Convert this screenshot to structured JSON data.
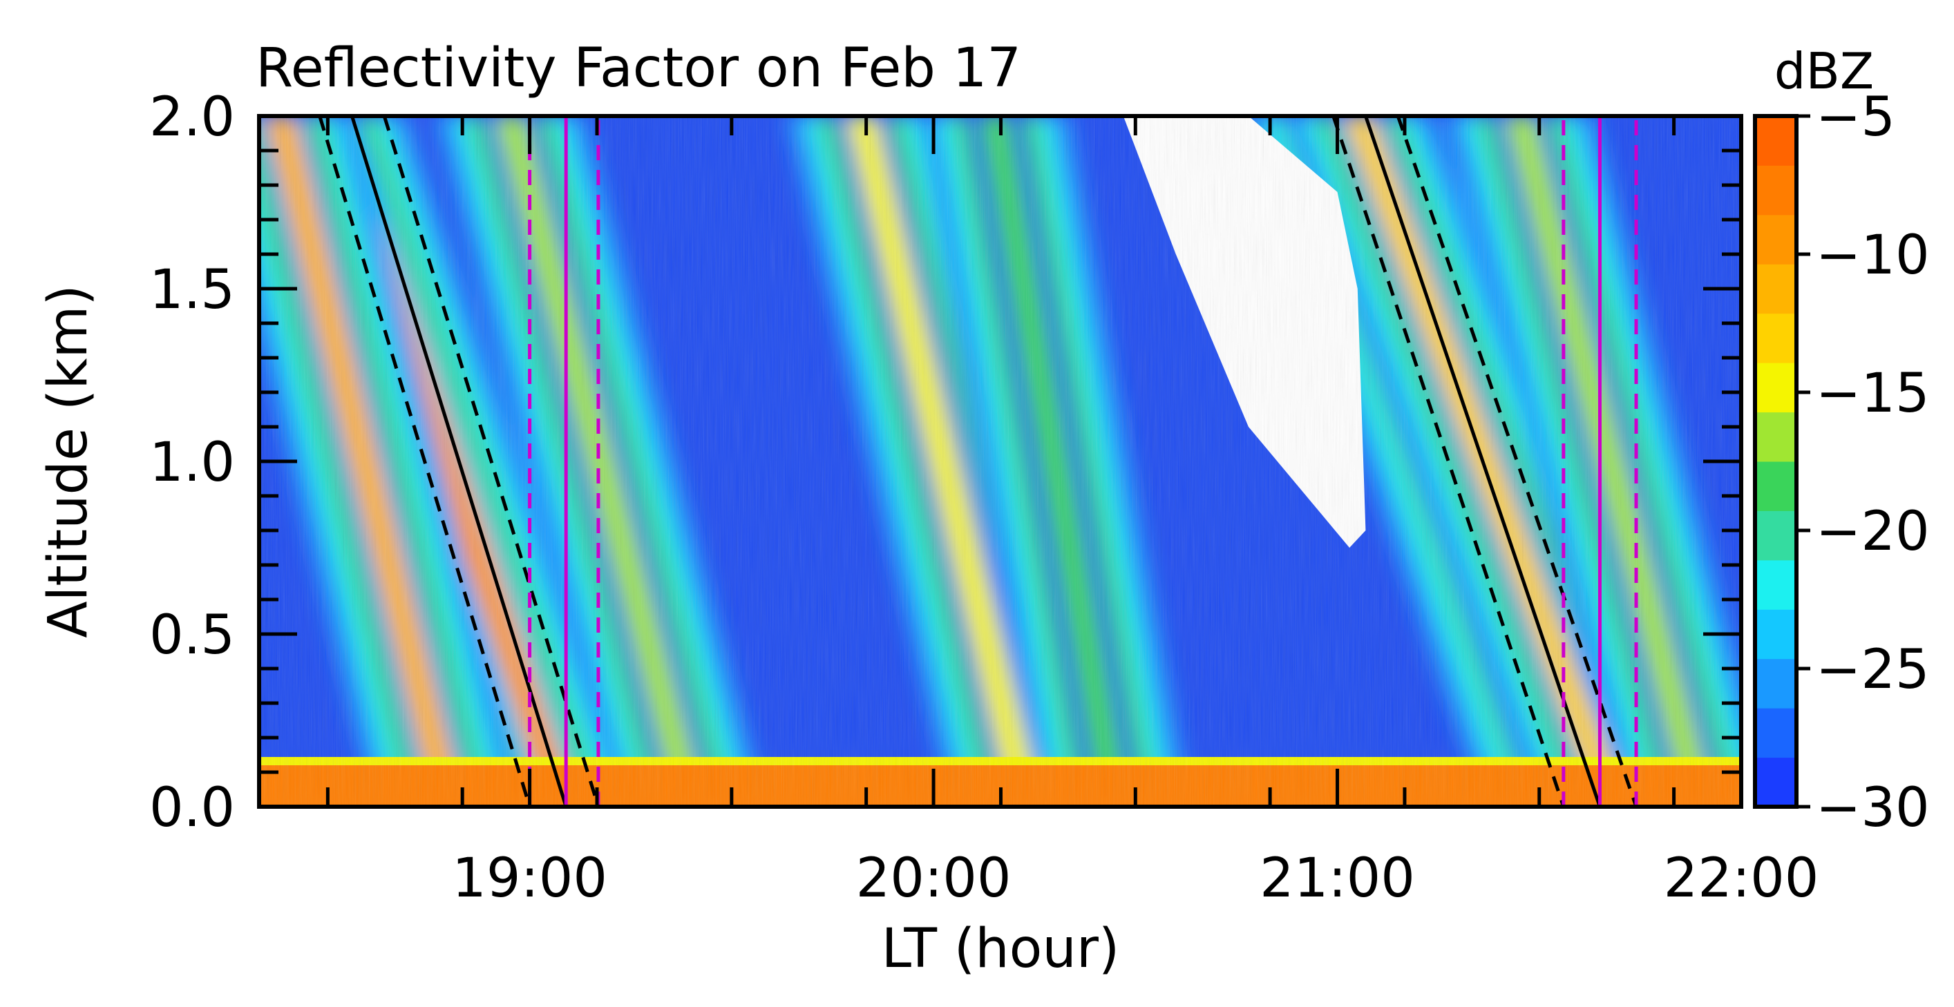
{
  "chart_data": {
    "type": "heatmap",
    "title": "Reflectivity Factor on Feb 17",
    "xlabel": "LT (hour)",
    "ylabel": "Altitude (km)",
    "colorbar_label": "dBZ",
    "xlim": [
      18.33,
      22.0
    ],
    "ylim": [
      0.0,
      2.0
    ],
    "x_ticks": [
      19,
      20,
      21,
      22
    ],
    "x_tick_labels": [
      "19:00",
      "20:00",
      "21:00",
      "22:00"
    ],
    "y_ticks": [
      0.0,
      0.5,
      1.0,
      1.5,
      2.0
    ],
    "y_tick_labels": [
      "0.0",
      "0.5",
      "1.0",
      "1.5",
      "2.0"
    ],
    "colorbar_range": [
      -30,
      -5
    ],
    "colorbar_ticks": [
      -30,
      -25,
      -20,
      -15,
      -10,
      -5
    ],
    "colorbar_tick_labels": [
      "−30",
      "−25",
      "−20",
      "−15",
      "−10",
      "−5"
    ],
    "colorbar_colors": [
      "#1a3dff",
      "#1a66ff",
      "#1a99ff",
      "#14c8ff",
      "#1cf0f0",
      "#34dca0",
      "#3ad45a",
      "#a0e632",
      "#f5f500",
      "#ffd200",
      "#ffb400",
      "#ff9600",
      "#ff7d00",
      "#ff6400"
    ],
    "no_data_color": "#ffffff",
    "streaks": [
      {
        "x_at_top": 18.51,
        "x_at_bottom": 19.08,
        "peak_dBZ": -10
      },
      {
        "x_at_top": 18.38,
        "x_at_bottom": 18.8,
        "peak_dBZ": -12
      },
      {
        "x_at_top": 18.95,
        "x_at_bottom": 19.4,
        "peak_dBZ": -17
      },
      {
        "x_at_top": 19.82,
        "x_at_bottom": 20.23,
        "peak_dBZ": -14
      },
      {
        "x_at_top": 20.15,
        "x_at_bottom": 20.45,
        "peak_dBZ": -18
      },
      {
        "x_at_top": 20.95,
        "x_at_bottom": 21.55,
        "peak_dBZ": -20
      },
      {
        "x_at_top": 21.05,
        "x_at_bottom": 21.68,
        "peak_dBZ": -13
      },
      {
        "x_at_top": 21.45,
        "x_at_bottom": 21.9,
        "peak_dBZ": -17
      }
    ],
    "surface_layer": {
      "top_km": 0.12,
      "peak_dBZ": -8
    },
    "no_data_region": {
      "outline_hours": [
        20.47,
        20.78,
        21.0,
        21.05,
        21.07,
        21.03,
        20.78,
        20.6,
        20.47
      ],
      "outline_km": [
        2.0,
        2.0,
        1.78,
        1.5,
        0.8,
        0.75,
        1.1,
        1.6,
        2.0
      ]
    },
    "overlay_lines": [
      {
        "style": "solid",
        "color": "#000000",
        "x": [
          18.56,
          19.09
        ],
        "y": [
          2.0,
          0.0
        ]
      },
      {
        "style": "dashed",
        "color": "#000000",
        "x": [
          18.48,
          19.0
        ],
        "y": [
          2.0,
          0.0
        ]
      },
      {
        "style": "dashed",
        "color": "#000000",
        "x": [
          18.64,
          19.17
        ],
        "y": [
          2.0,
          0.0
        ]
      },
      {
        "style": "solid",
        "color": "#cc00cc",
        "x": [
          19.09,
          19.09
        ],
        "y": [
          0.0,
          2.0
        ]
      },
      {
        "style": "dashed",
        "color": "#cc00cc",
        "x": [
          19.0,
          19.0
        ],
        "y": [
          0.0,
          2.0
        ]
      },
      {
        "style": "dashed",
        "color": "#cc00cc",
        "x": [
          19.17,
          19.17
        ],
        "y": [
          0.0,
          2.0
        ]
      },
      {
        "style": "solid",
        "color": "#000000",
        "x": [
          21.07,
          21.65
        ],
        "y": [
          2.0,
          0.0
        ]
      },
      {
        "style": "dashed",
        "color": "#000000",
        "x": [
          20.99,
          21.56
        ],
        "y": [
          2.0,
          0.0
        ]
      },
      {
        "style": "dashed",
        "color": "#000000",
        "x": [
          21.15,
          21.74
        ],
        "y": [
          2.0,
          0.0
        ]
      },
      {
        "style": "solid",
        "color": "#cc00cc",
        "x": [
          21.65,
          21.65
        ],
        "y": [
          0.0,
          2.0
        ]
      },
      {
        "style": "dashed",
        "color": "#cc00cc",
        "x": [
          21.56,
          21.56
        ],
        "y": [
          0.0,
          2.0
        ]
      },
      {
        "style": "dashed",
        "color": "#cc00cc",
        "x": [
          21.74,
          21.74
        ],
        "y": [
          0.0,
          2.0
        ]
      }
    ]
  }
}
